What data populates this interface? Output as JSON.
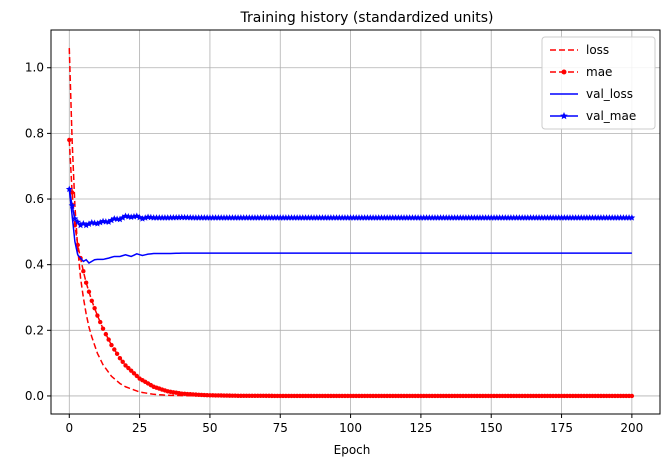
{
  "chart_data": {
    "type": "line",
    "title": "Training history (standardized units)",
    "xlabel": "Epoch",
    "ylabel": "",
    "xlim": [
      -6.5,
      210
    ],
    "ylim": [
      -0.055,
      1.115
    ],
    "xticks": [
      0,
      25,
      50,
      75,
      100,
      125,
      150,
      175,
      200
    ],
    "yticks": [
      0.0,
      0.2,
      0.4,
      0.6,
      0.8,
      1.0
    ],
    "ytick_labels": [
      "0.0",
      "0.2",
      "0.4",
      "0.6",
      "0.8",
      "1.0"
    ],
    "grid": true,
    "legend_position": "top-right",
    "series": [
      {
        "name": "loss",
        "color": "#ff0000",
        "line_style": "dashed",
        "marker": "none",
        "x": [
          0,
          1,
          2,
          3,
          4,
          5,
          6,
          7,
          8,
          10,
          12,
          15,
          18,
          20,
          25,
          30,
          35,
          40,
          45,
          50,
          60,
          80,
          100,
          125,
          150,
          175,
          200
        ],
        "y": [
          1.06,
          0.78,
          0.58,
          0.45,
          0.36,
          0.3,
          0.25,
          0.21,
          0.18,
          0.13,
          0.095,
          0.06,
          0.038,
          0.028,
          0.012,
          0.005,
          0.002,
          0.001,
          0.0005,
          0.0002,
          0.0,
          0.0,
          0.0,
          0.0,
          0.0,
          0.0,
          0.0
        ]
      },
      {
        "name": "mae",
        "color": "#ff0000",
        "line_style": "dashed",
        "marker": "circle",
        "x": [
          0,
          1,
          2,
          3,
          4,
          5,
          6,
          8,
          10,
          12,
          15,
          18,
          20,
          25,
          30,
          35,
          40,
          45,
          50,
          60,
          80,
          100,
          125,
          150,
          175,
          200
        ],
        "y": [
          0.78,
          0.62,
          0.52,
          0.46,
          0.42,
          0.38,
          0.345,
          0.29,
          0.245,
          0.205,
          0.155,
          0.115,
          0.093,
          0.053,
          0.028,
          0.014,
          0.007,
          0.004,
          0.002,
          0.0005,
          0.0,
          0.0,
          0.0,
          0.0,
          0.0,
          0.0
        ]
      },
      {
        "name": "val_loss",
        "color": "#0000ff",
        "line_style": "solid",
        "marker": "none",
        "x": [
          0,
          1,
          2,
          3,
          4,
          5,
          6,
          7,
          8,
          9,
          10,
          12,
          14,
          16,
          18,
          20,
          22,
          24,
          26,
          28,
          30,
          35,
          40,
          45,
          50,
          75,
          100,
          125,
          150,
          175,
          200
        ],
        "y": [
          0.63,
          0.55,
          0.47,
          0.43,
          0.42,
          0.41,
          0.415,
          0.405,
          0.41,
          0.415,
          0.416,
          0.416,
          0.42,
          0.425,
          0.425,
          0.43,
          0.425,
          0.433,
          0.428,
          0.432,
          0.434,
          0.434,
          0.435,
          0.435,
          0.435,
          0.435,
          0.435,
          0.435,
          0.435,
          0.435,
          0.435
        ]
      },
      {
        "name": "val_mae",
        "color": "#0000ff",
        "line_style": "solid",
        "marker": "star",
        "x": [
          0,
          1,
          2,
          3,
          4,
          5,
          6,
          8,
          10,
          12,
          14,
          16,
          18,
          20,
          22,
          24,
          26,
          28,
          30,
          35,
          40,
          45,
          50,
          75,
          100,
          125,
          150,
          175,
          200
        ],
        "y": [
          0.63,
          0.58,
          0.54,
          0.53,
          0.52,
          0.525,
          0.52,
          0.528,
          0.525,
          0.532,
          0.53,
          0.54,
          0.538,
          0.548,
          0.545,
          0.548,
          0.54,
          0.545,
          0.543,
          0.543,
          0.544,
          0.543,
          0.543,
          0.543,
          0.543,
          0.543,
          0.543,
          0.543,
          0.543
        ]
      }
    ]
  }
}
